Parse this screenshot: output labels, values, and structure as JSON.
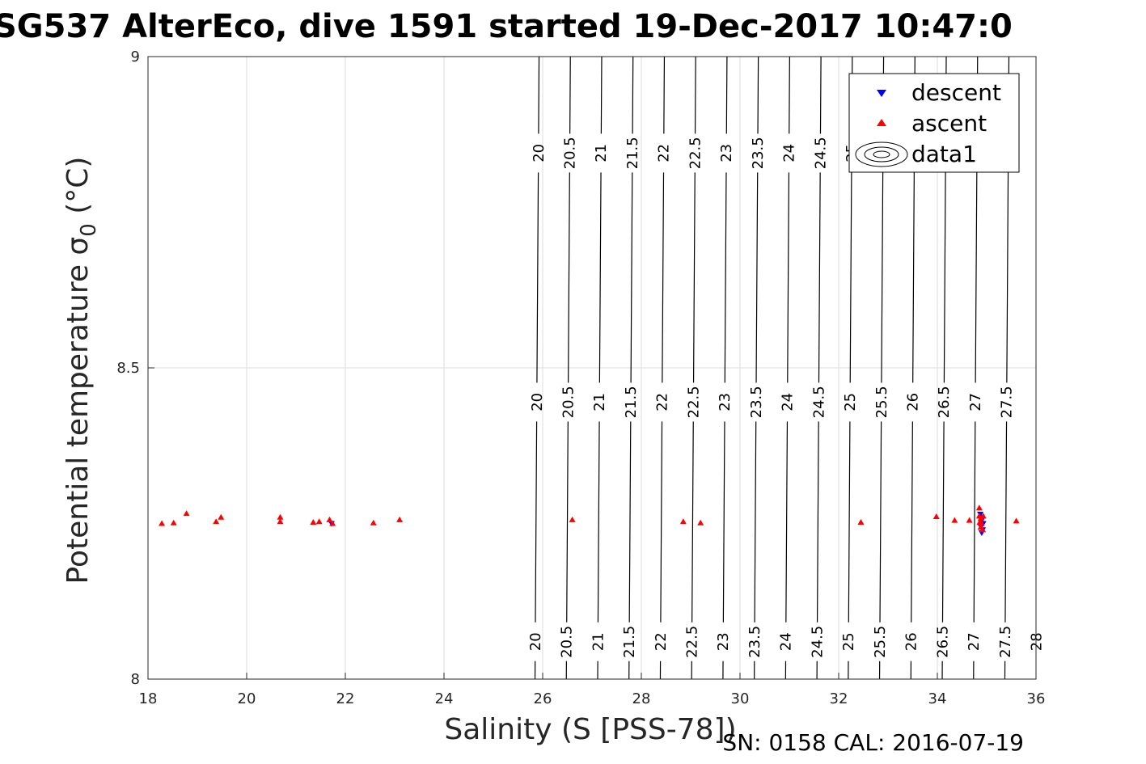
{
  "chart_data": {
    "type": "scatter",
    "title": "SG537 AlterEco, dive 1591 started 19-Dec-2017 10:47:0",
    "xlabel": "Salinity (S [PSS-78])",
    "ylabel": "Potential temperature σ",
    "ylabel_sub": "0",
    "ylabel_units": " (°C)",
    "xlim": [
      18,
      36
    ],
    "ylim": [
      8,
      9
    ],
    "xticks": [
      "18",
      "20",
      "22",
      "24",
      "26",
      "28",
      "30",
      "32",
      "34",
      "36"
    ],
    "yticks": [
      "8",
      "8.5",
      "9"
    ],
    "grid": true,
    "legend_position": "top-right",
    "legend": [
      "descent",
      "ascent",
      "data1"
    ],
    "colors": {
      "descent": "#0000ff",
      "ascent": "#ff0000",
      "contour": "#000000"
    },
    "series": [
      {
        "name": "descent",
        "marker": "triangle-down",
        "points": [
          [
            21.72,
            8.25
          ],
          [
            34.87,
            8.265
          ],
          [
            34.9,
            8.255
          ],
          [
            34.88,
            8.245
          ],
          [
            34.92,
            8.24
          ],
          [
            34.9,
            8.235
          ],
          [
            34.93,
            8.25
          ],
          [
            34.89,
            8.26
          ]
        ]
      },
      {
        "name": "ascent",
        "marker": "triangle-up",
        "points": [
          [
            18.28,
            8.25
          ],
          [
            18.52,
            8.251
          ],
          [
            18.78,
            8.266
          ],
          [
            19.38,
            8.253
          ],
          [
            19.48,
            8.26
          ],
          [
            20.68,
            8.26
          ],
          [
            20.68,
            8.253
          ],
          [
            21.35,
            8.252
          ],
          [
            21.47,
            8.253
          ],
          [
            21.68,
            8.256
          ],
          [
            21.74,
            8.25
          ],
          [
            22.57,
            8.251
          ],
          [
            23.1,
            8.256
          ],
          [
            26.6,
            8.256
          ],
          [
            28.85,
            8.253
          ],
          [
            29.2,
            8.251
          ],
          [
            32.45,
            8.252
          ],
          [
            33.98,
            8.261
          ],
          [
            34.35,
            8.255
          ],
          [
            34.65,
            8.255
          ],
          [
            34.85,
            8.275
          ],
          [
            34.85,
            8.262
          ],
          [
            34.88,
            8.258
          ],
          [
            34.9,
            8.25
          ],
          [
            34.88,
            8.244
          ],
          [
            34.92,
            8.24
          ],
          [
            34.86,
            8.252
          ],
          [
            34.93,
            8.262
          ],
          [
            35.6,
            8.254
          ]
        ]
      },
      {
        "name": "data1",
        "type": "contour",
        "levels": [
          "20",
          "20.5",
          "21",
          "21.5",
          "22",
          "22.5",
          "23",
          "23.5",
          "24",
          "24.5",
          "25",
          "25.5",
          "26",
          "26.5",
          "27",
          "27.5",
          "28"
        ],
        "label_rows": [
          {
            "y": 8.845,
            "levels": [
              "20",
              "20.5",
              "21",
              "21.5",
              "22",
              "22.5",
              "23",
              "23.5",
              "24",
              "24.5",
              "25"
            ]
          },
          {
            "y": 8.445,
            "levels": [
              "20",
              "20.5",
              "21",
              "21.5",
              "22",
              "22.5",
              "23",
              "23.5",
              "24",
              "24.5",
              "25",
              "25.5",
              "26",
              "26.5",
              "27",
              "27.5"
            ]
          },
          {
            "y": 8.06,
            "levels": [
              "20",
              "20.5",
              "21",
              "21.5",
              "22",
              "22.5",
              "23",
              "23.5",
              "24",
              "24.5",
              "25",
              "25.5",
              "26",
              "26.5",
              "27",
              "27.5",
              "28"
            ]
          }
        ]
      }
    ]
  },
  "footer": "SN: 0158  CAL: 2016-07-19"
}
